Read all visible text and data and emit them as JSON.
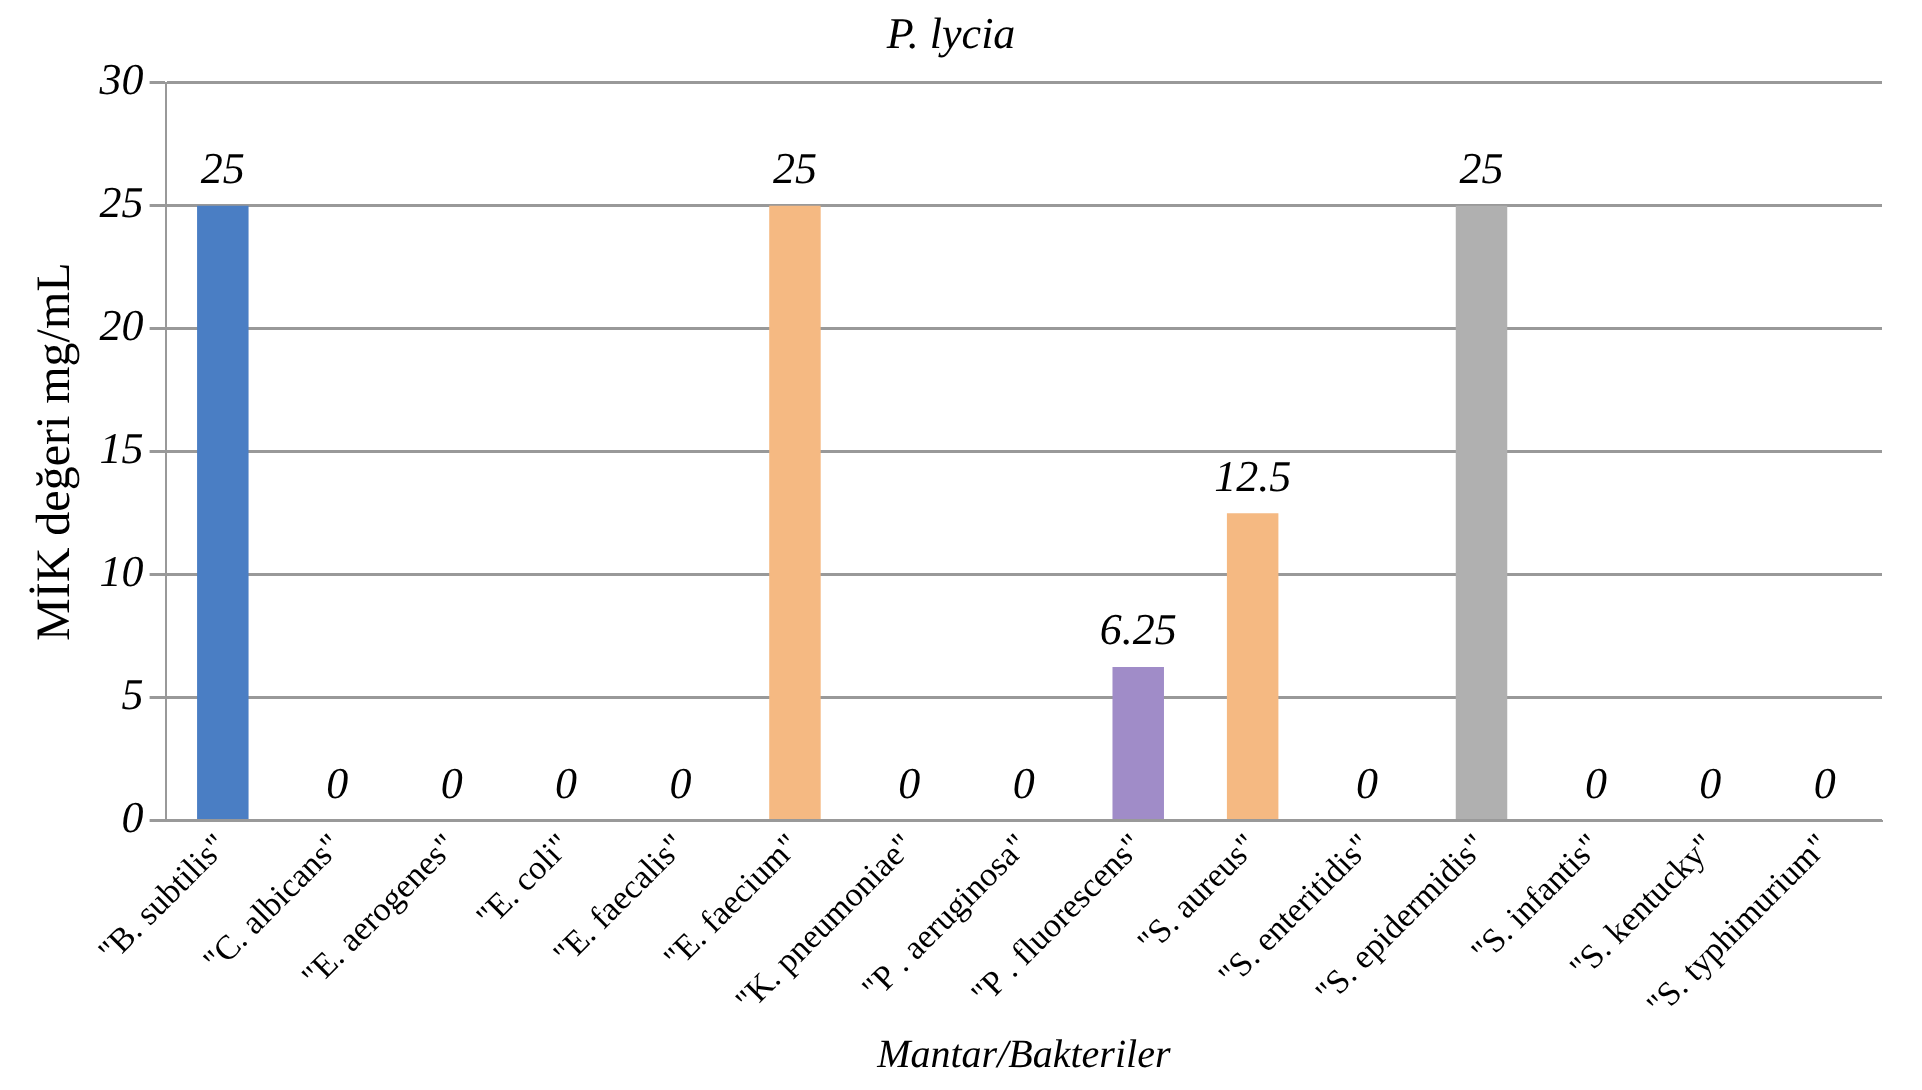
{
  "chart_data": {
    "type": "bar",
    "title": "P. lycia",
    "xlabel": "Mantar/Bakteriler",
    "ylabel": "MİK değeri mg/mL",
    "categories": [
      "\"B. subtilis\"",
      "\"C. albicans\"",
      "\"E. aerogenes\"",
      "\"E. coli\"",
      "\"E. faecalis\"",
      "\"E. faecium\"",
      "\"K. pneumoniae\"",
      "\"P . aeruginosa\"",
      "\"P . fluorescens\"",
      "\"S. aureus\"",
      "\"S. enteritidis\"",
      "\"S. epidermidis\"",
      "\"S. infantis\"",
      "\"S. kentucky\"",
      "\"S. typhimurium\""
    ],
    "values": [
      25,
      0,
      0,
      0,
      0,
      25,
      0,
      0,
      6.25,
      12.5,
      0,
      25,
      0,
      0,
      0
    ],
    "colors": [
      "#4a7ec4",
      "#b03a3a",
      "#6b8a2e",
      "#d9a01c",
      "#6f6a3a",
      "#f5b982",
      "#8aa4c8",
      "#9ab07a",
      "#a08cc8",
      "#f5b982",
      "#404040",
      "#b0b0b0",
      "#5a7a2a",
      "#e0b8a0",
      "#4a7ec4"
    ],
    "ylim": [
      0,
      30
    ],
    "yticks": [
      0,
      5,
      10,
      15,
      20,
      25,
      30
    ],
    "grid": "y",
    "data_labels": true,
    "legend": false
  }
}
